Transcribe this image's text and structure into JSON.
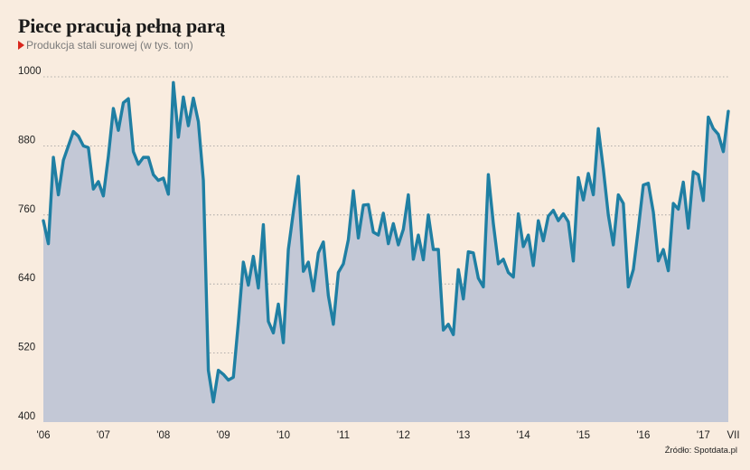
{
  "chart_data": {
    "type": "area",
    "title": "Piece pracują pełną parą",
    "subtitle": "Produkcja stali surowej (w tys. ton)",
    "source": "Źródło: Spotdata.pl",
    "ylim": [
      400,
      1000
    ],
    "yticks": [
      400,
      520,
      640,
      760,
      880,
      1000
    ],
    "xticks": [
      {
        "label": "'06",
        "pos": 1
      },
      {
        "label": "'07",
        "pos": 13
      },
      {
        "label": "'08",
        "pos": 25
      },
      {
        "label": "'09",
        "pos": 37
      },
      {
        "label": "'10",
        "pos": 49
      },
      {
        "label": "'11",
        "pos": 61
      },
      {
        "label": "'12",
        "pos": 73
      },
      {
        "label": "'13",
        "pos": 85
      },
      {
        "label": "'14",
        "pos": 97
      },
      {
        "label": "'15",
        "pos": 109
      },
      {
        "label": "'16",
        "pos": 121
      },
      {
        "label": "'17",
        "pos": 133
      },
      {
        "label": "VII",
        "pos": 139
      }
    ],
    "grid": true,
    "colors": {
      "line": "#1f7fa3",
      "fill": "#c3c8d6",
      "grid": "#9a9a9a"
    },
    "series": [
      {
        "values": [
          750,
          710,
          860,
          795,
          855,
          880,
          905,
          897,
          880,
          877,
          805,
          818,
          793,
          862,
          945,
          907,
          955,
          962,
          870,
          848,
          860,
          860,
          830,
          820,
          824,
          796,
          990,
          895,
          965,
          915,
          963,
          922,
          820,
          490,
          435,
          490,
          483,
          473,
          478,
          573,
          678,
          638,
          688,
          633,
          743,
          575,
          555,
          605,
          538,
          700,
          765,
          827,
          662,
          678,
          628,
          694,
          713,
          620,
          570,
          660,
          675,
          717,
          802,
          720,
          777,
          778,
          730,
          725,
          763,
          710,
          745,
          708,
          735,
          795,
          683,
          725,
          682,
          760,
          700,
          700,
          560,
          570,
          552,
          665,
          614,
          696,
          694,
          650,
          635,
          830,
          745,
          675,
          683,
          660,
          652,
          762,
          705,
          725,
          672,
          750,
          715,
          758,
          768,
          750,
          762,
          748,
          680,
          825,
          786,
          832,
          795,
          910,
          840,
          760,
          708,
          795,
          780,
          635,
          665,
          736,
          812,
          815,
          765,
          680,
          700,
          663,
          780,
          770,
          817,
          737,
          835,
          830,
          785,
          930,
          910,
          900,
          870,
          940
        ]
      }
    ]
  }
}
